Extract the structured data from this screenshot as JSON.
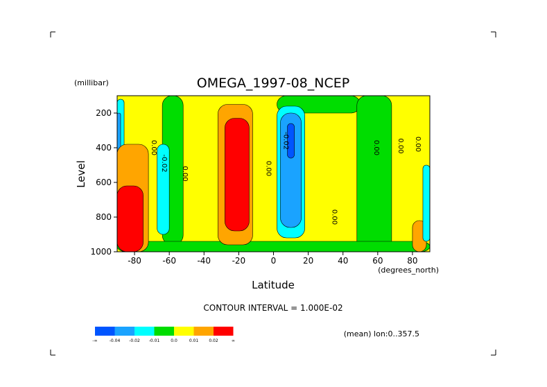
{
  "chart_data": {
    "type": "heatmap",
    "title": "OMEGA_1997-08_NCEP",
    "xlabel": "Latitude",
    "ylabel": "Level",
    "x_units": "(degrees_north)",
    "y_units": "(millibar)",
    "xlim": [
      -90,
      90
    ],
    "ylim": [
      1000,
      100
    ],
    "x_ticks": [
      -80,
      -60,
      -40,
      -20,
      0,
      20,
      40,
      60,
      80
    ],
    "x_tick_labels": [
      "-80",
      "-60",
      "-40",
      "-20",
      "0",
      "20",
      "40",
      "60",
      "80"
    ],
    "y_ticks": [
      200,
      400,
      600,
      800,
      1000
    ],
    "y_tick_labels": [
      "200",
      "400",
      "600",
      "800",
      "1000"
    ],
    "contour_interval_text": "CONTOUR INTERVAL = 1.000E-02",
    "mean_text": "(mean) lon:0..357.5",
    "contour_labels": [
      {
        "text": "0.00",
        "lat": -70,
        "p": 400
      },
      {
        "text": "-0.02",
        "lat": -64,
        "p": 490
      },
      {
        "text": "0.00",
        "lat": -52,
        "p": 550
      },
      {
        "text": "0.00",
        "lat": -4,
        "p": 520
      },
      {
        "text": "-0.02",
        "lat": 6,
        "p": 360
      },
      {
        "text": "0.00",
        "lat": 34,
        "p": 800
      },
      {
        "text": "0.00",
        "lat": 58,
        "p": 400
      },
      {
        "text": "0.00",
        "lat": 72,
        "p": 390
      },
      {
        "text": "0.00",
        "lat": 82,
        "p": 380
      }
    ],
    "legend": {
      "colors": [
        "#0055ff",
        "#1aa3ff",
        "#00ffff",
        "#00dd00",
        "#ffff00",
        "#ffa500",
        "#ff0000"
      ],
      "labels": [
        "-∞",
        "-0.04",
        "-0.02",
        "-0.01",
        "0.0",
        "0.01",
        "0.02",
        "∞"
      ]
    },
    "regions": [
      {
        "name": "background-zero",
        "color": "#ffff00",
        "lat0": -90,
        "lat1": 90,
        "p0": 100,
        "p1": 1000
      },
      {
        "name": "green-west-band",
        "color": "#00dd00",
        "lat0": -64,
        "lat1": -52,
        "p0": 100,
        "p1": 960
      },
      {
        "name": "green-upper-mid",
        "color": "#00dd00",
        "lat0": 2,
        "lat1": 50,
        "p0": 100,
        "p1": 200
      },
      {
        "name": "green-east-band",
        "color": "#00dd00",
        "lat0": 48,
        "lat1": 68,
        "p0": 100,
        "p1": 1000
      },
      {
        "name": "green-surface",
        "color": "#00dd00",
        "lat0": -90,
        "lat1": 90,
        "p0": 940,
        "p1": 1000
      },
      {
        "name": "cyan-west",
        "color": "#00ffff",
        "lat0": -67,
        "lat1": -60,
        "p0": 380,
        "p1": 900
      },
      {
        "name": "cyan-pole",
        "color": "#00ffff",
        "lat0": -90,
        "lat1": -86,
        "p0": 120,
        "p1": 700
      },
      {
        "name": "blue-pole",
        "color": "#1aa3ff",
        "lat0": -90,
        "lat1": -88,
        "p0": 200,
        "p1": 600
      },
      {
        "name": "cyan-center",
        "color": "#00ffff",
        "lat0": 2,
        "lat1": 18,
        "p0": 160,
        "p1": 920
      },
      {
        "name": "blue-center",
        "color": "#1aa3ff",
        "lat0": 4,
        "lat1": 16,
        "p0": 200,
        "p1": 860
      },
      {
        "name": "deepblue-center",
        "color": "#0055ff",
        "lat0": 8,
        "lat1": 12,
        "p0": 260,
        "p1": 460
      },
      {
        "name": "orange-center",
        "color": "#ffa500",
        "lat0": -32,
        "lat1": -12,
        "p0": 150,
        "p1": 960
      },
      {
        "name": "red-center",
        "color": "#ff0000",
        "lat0": -28,
        "lat1": -14,
        "p0": 230,
        "p1": 880
      },
      {
        "name": "orange-west",
        "color": "#ffa500",
        "lat0": -90,
        "lat1": -72,
        "p0": 380,
        "p1": 1000
      },
      {
        "name": "red-west",
        "color": "#ff0000",
        "lat0": -90,
        "lat1": -75,
        "p0": 620,
        "p1": 1000
      },
      {
        "name": "orange-east",
        "color": "#ffa500",
        "lat0": 80,
        "lat1": 88,
        "p0": 820,
        "p1": 1000
      },
      {
        "name": "cyan-east",
        "color": "#00ffff",
        "lat0": 86,
        "lat1": 90,
        "p0": 500,
        "p1": 940
      }
    ]
  }
}
